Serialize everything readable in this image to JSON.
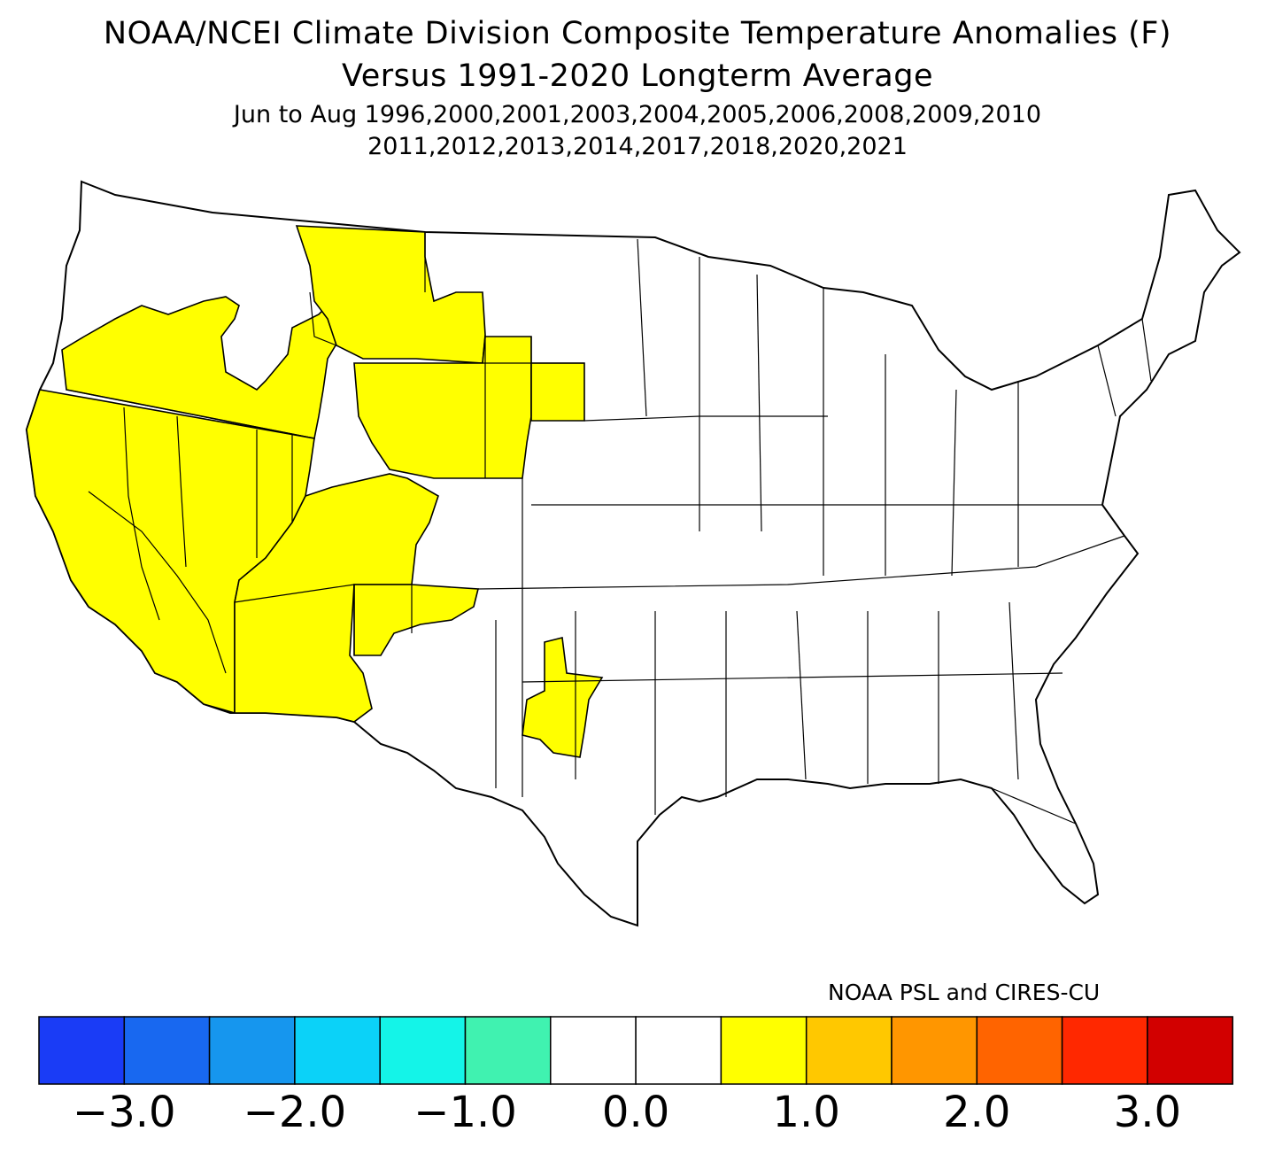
{
  "title": {
    "line1": "NOAA/NCEI Climate Division Composite Temperature Anomalies (F)",
    "line2": "Versus 1991-2020 Longterm Average",
    "line3": "Jun to Aug  1996,2000,2001,2003,2004,2005,2006,2008,2009,2010",
    "line4": "2011,2012,2013,2014,2017,2018,2020,2021"
  },
  "credit": "NOAA PSL and CIRES-CU",
  "legend": {
    "colors": [
      "#1a3cf6",
      "#1868f0",
      "#1696ee",
      "#0bd2f8",
      "#14f4e8",
      "#40f2b0",
      "#ffffff",
      "#ffffff",
      "#ffff00",
      "#ffc800",
      "#ff9600",
      "#ff6400",
      "#ff2800",
      "#d20000"
    ],
    "tick_labels": [
      "-3.0",
      "-2.0",
      "-1.0",
      "0.0",
      "1.0",
      "2.0",
      "3.0"
    ]
  },
  "map": {
    "highlight_color": "#ffff00",
    "land_color": "#ffffff",
    "border_color": "#000000"
  }
}
